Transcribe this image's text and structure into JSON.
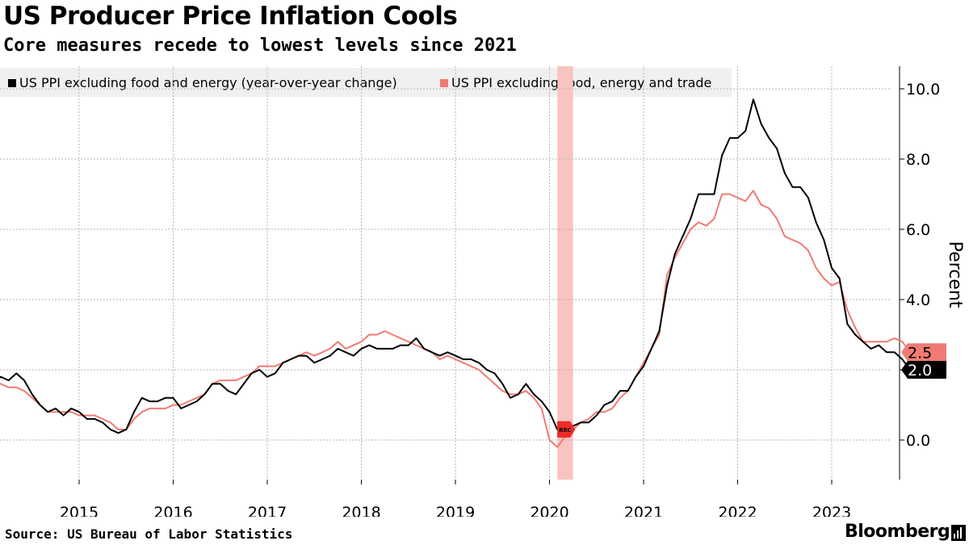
{
  "header": {
    "title": "US Producer Price Inflation Cools",
    "subtitle": "Core measures recede to lowest levels since 2021"
  },
  "footer": {
    "source": "Source: US Bureau of Labor Statistics",
    "brand": "Bloomberg"
  },
  "colors": {
    "series1": "#000000",
    "series2": "#f07b73",
    "recession": "#f8c4c0",
    "grid": "#b5b5b5",
    "rec_marker": "#ee2b2b"
  },
  "chart_data": {
    "type": "line",
    "ylabel": "Percent",
    "ylim": [
      -1.1,
      10.7
    ],
    "yticks": [
      0,
      2,
      4,
      6,
      8,
      10
    ],
    "ytick_labels": [
      "0.0",
      "2.0",
      "4.0",
      "6.0",
      "8.0",
      "10.0"
    ],
    "xticks": [
      2015,
      2016,
      2017,
      2018,
      2019,
      2020,
      2021,
      2022,
      2023
    ],
    "xtick_labels": [
      "2015",
      "2016",
      "2017",
      "2018",
      "2019",
      "2020",
      "2021",
      "2022",
      "2023"
    ],
    "x_start": "2014-01",
    "legend": "top-left",
    "grid": true,
    "recession": {
      "from": "2020-02",
      "to": "2020-04",
      "label": "REC"
    },
    "series": [
      {
        "name": "US PPI excluding food and energy (year-over-year change)",
        "last_label": "2.0",
        "values": [
          1.8,
          1.6,
          1.8,
          1.7,
          1.9,
          1.7,
          1.3,
          1.0,
          0.8,
          0.9,
          0.7,
          0.9,
          0.8,
          0.6,
          0.6,
          0.5,
          0.3,
          0.2,
          0.3,
          0.8,
          1.2,
          1.1,
          1.1,
          1.2,
          1.2,
          0.9,
          1.0,
          1.1,
          1.3,
          1.6,
          1.6,
          1.4,
          1.3,
          1.6,
          1.9,
          2.0,
          1.8,
          1.9,
          2.2,
          2.3,
          2.4,
          2.4,
          2.2,
          2.3,
          2.4,
          2.6,
          2.5,
          2.4,
          2.6,
          2.7,
          2.6,
          2.6,
          2.6,
          2.7,
          2.7,
          2.9,
          2.6,
          2.5,
          2.4,
          2.5,
          2.4,
          2.3,
          2.3,
          2.2,
          2.0,
          1.9,
          1.6,
          1.2,
          1.3,
          1.6,
          1.3,
          1.1,
          0.8,
          0.3,
          0.3,
          0.4,
          0.5,
          0.5,
          0.7,
          1.0,
          1.1,
          1.4,
          1.4,
          1.8,
          2.1,
          2.6,
          3.1,
          4.4,
          5.3,
          5.8,
          6.3,
          7.0,
          7.0,
          7.0,
          8.1,
          8.6,
          8.6,
          8.8,
          9.7,
          9.0,
          8.6,
          8.3,
          7.6,
          7.2,
          7.2,
          6.9,
          6.2,
          5.7,
          4.9,
          4.6,
          3.3,
          3.0,
          2.8,
          2.6,
          2.7,
          2.5,
          2.5,
          2.3,
          2.0
        ]
      },
      {
        "name": "US PPI excluding food, energy and trade",
        "last_label": "2.5",
        "values": [
          1.8,
          1.7,
          1.6,
          1.5,
          1.5,
          1.4,
          1.2,
          1.0,
          0.8,
          0.8,
          0.8,
          0.8,
          0.7,
          0.7,
          0.7,
          0.6,
          0.5,
          0.3,
          0.3,
          0.6,
          0.8,
          0.9,
          0.9,
          0.9,
          1.0,
          1.0,
          1.1,
          1.2,
          1.3,
          1.6,
          1.7,
          1.7,
          1.7,
          1.8,
          1.9,
          2.1,
          2.1,
          2.1,
          2.2,
          2.3,
          2.4,
          2.5,
          2.4,
          2.5,
          2.6,
          2.8,
          2.6,
          2.7,
          2.8,
          3.0,
          3.0,
          3.1,
          3.0,
          2.9,
          2.8,
          2.7,
          2.6,
          2.5,
          2.3,
          2.4,
          2.3,
          2.2,
          2.1,
          2.0,
          1.8,
          1.6,
          1.4,
          1.3,
          1.3,
          1.4,
          1.2,
          0.9,
          0.0,
          -0.2,
          0.1,
          0.3,
          0.5,
          0.6,
          0.8,
          0.8,
          0.9,
          1.2,
          1.4,
          1.8,
          2.2,
          2.6,
          3.0,
          4.7,
          5.2,
          5.6,
          6.0,
          6.2,
          6.1,
          6.3,
          7.0,
          7.0,
          6.9,
          6.8,
          7.1,
          6.7,
          6.6,
          6.3,
          5.8,
          5.7,
          5.6,
          5.4,
          4.9,
          4.6,
          4.4,
          4.5,
          3.7,
          3.2,
          2.8,
          2.8,
          2.8,
          2.8,
          2.9,
          2.8,
          2.5
        ]
      }
    ]
  }
}
